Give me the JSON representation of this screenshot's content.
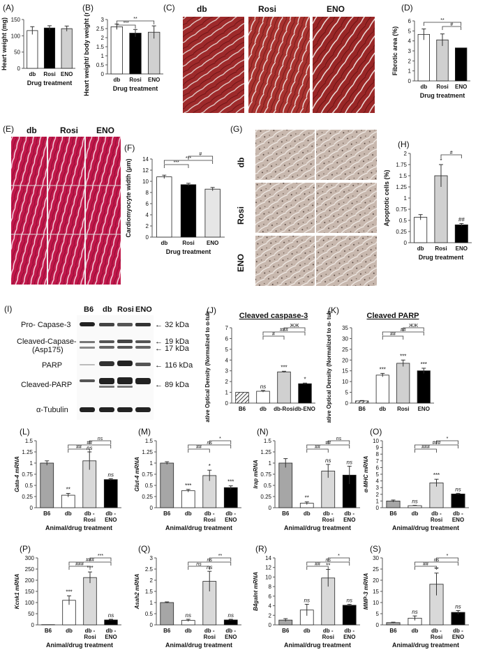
{
  "panels": {
    "A": {
      "label": "(A)",
      "ylabel": "Heart weight (mg)",
      "xlabel": "Drug treatment",
      "ticks": [
        "0",
        "50",
        "100",
        "150"
      ],
      "cats": [
        "db",
        "Rosi",
        "ENO"
      ]
    },
    "B": {
      "label": "(B)",
      "ylabel": "Heart weight/ body weight (mg/g)",
      "xlabel": "Drug treatment",
      "ticks": [
        "0",
        "0.5",
        "1",
        "1.5",
        "2",
        "2.5",
        "3"
      ],
      "cats": [
        "db",
        "Rosi",
        "ENO"
      ],
      "sig": [
        "***",
        "**"
      ]
    },
    "C": {
      "label": "(C)",
      "cols": [
        "db",
        "Rosi",
        "ENO"
      ]
    },
    "D": {
      "label": "(D)",
      "ylabel": "Fibrotic area (%)",
      "xlabel": "Drug treatment",
      "ticks": [
        "0",
        "1",
        "2",
        "3",
        "4",
        "5",
        "6"
      ],
      "cats": [
        "db",
        "Rosi",
        "ENO"
      ],
      "sig": [
        "**",
        "#"
      ]
    },
    "E": {
      "label": "(E)",
      "cols": [
        "db",
        "Rosi",
        "ENO"
      ]
    },
    "F": {
      "label": "(F)",
      "ylabel": "Cardiomyocyte width (μm)",
      "xlabel": "Drug treatment",
      "ticks": [
        "0",
        "2",
        "4",
        "6",
        "8",
        "10",
        "12",
        "14"
      ],
      "cats": [
        "db",
        "Rosi",
        "ENO"
      ],
      "sig": [
        "***",
        "***",
        "#"
      ]
    },
    "G": {
      "label": "(G)",
      "rows": [
        "db",
        "Rosi",
        "ENO"
      ]
    },
    "H": {
      "label": "(H)",
      "ylabel": "Apoptotic cells (%)",
      "xlabel": "Drug treatment",
      "ticks": [
        "0",
        "0.25",
        "0.5",
        "0.75",
        "1",
        "1.25",
        "1.5",
        "1.75",
        "2"
      ],
      "cats": [
        "db",
        "Rosi",
        "ENO"
      ],
      "sig": [
        "#",
        "*",
        "##"
      ]
    },
    "I": {
      "label": "(I)",
      "lanes": [
        "B6",
        "db",
        "Rosi",
        "ENO"
      ],
      "rows": [
        "Pro- Capase-3",
        "Cleaved-Capase-3",
        "(Asp175)",
        "PARP",
        "Cleaved-PARP",
        "α-Tubulin"
      ],
      "markers": [
        "32 kDa",
        "19 kDa",
        "17 kDa",
        "116 kDa",
        "89 kDa"
      ]
    },
    "J": {
      "label": "(J)",
      "title": "Cleaved caspase-3",
      "ylabel": "Relative Optical Density (Normalized to α-tubulin)",
      "ticks": [
        "0",
        "1",
        "2",
        "3",
        "4",
        "5",
        "6",
        "7"
      ],
      "cats": [
        "B6",
        "db",
        "db-Rosi",
        "db-ENO"
      ],
      "sig": [
        "ns",
        "***",
        "*",
        "#",
        "###",
        "ЖЖ"
      ]
    },
    "K": {
      "label": "(K)",
      "title": "Cleaved PARP",
      "ylabel": "Relative Optical Density (Normalized to α- tubulin)",
      "ticks": [
        "0",
        "5",
        "10",
        "15",
        "20",
        "25",
        "30",
        "35"
      ],
      "cats": [
        "B6",
        "db",
        "Rosi",
        "ENO"
      ],
      "sig": [
        "***",
        "***",
        "***",
        "##",
        "##",
        "ЖЖ"
      ]
    },
    "L": {
      "label": "(L)",
      "ylabel": "Gata-4 mRNA",
      "xlabel": "Animal/drug treatment",
      "ticks": [
        "0",
        "0.25",
        "0.5",
        "0.75",
        "1",
        "1.25",
        "1.5"
      ],
      "cats": [
        "B6",
        "db",
        "db - Rosi",
        "db - ENO"
      ],
      "sig": [
        "**",
        "ns",
        "ns",
        "##",
        "##",
        "ns"
      ]
    },
    "M": {
      "label": "(M)",
      "ylabel": "Glut-4 mRNA",
      "xlabel": "Animal/drug treatment",
      "ticks": [
        "0",
        "0.25",
        "0.5",
        "0.75",
        "1",
        "1.25",
        "1.5"
      ],
      "cats": [
        "B6",
        "db",
        "db - Rosi",
        "db - ENO"
      ],
      "sig": [
        "***",
        "*",
        "***",
        "##",
        "ns",
        "*"
      ]
    },
    "N": {
      "label": "(N)",
      "ylabel": "Irap mRNA",
      "xlabel": "Animal/drug treatment",
      "ticks": [
        "0",
        "0.25",
        "0.5",
        "0.75",
        "1",
        "1.25",
        "1.5"
      ],
      "cats": [
        "B6",
        "db",
        "db - Rosi",
        "db - ENO"
      ],
      "sig": [
        "**",
        "ns",
        "ns",
        "##",
        "##",
        "ns"
      ]
    },
    "O": {
      "label": "(O)",
      "ylabel": "α-MHC mRNA",
      "xlabel": "Animal/drug treatment",
      "ticks": [
        "0",
        "1",
        "2",
        "3",
        "4",
        "5",
        "6",
        "7",
        "8",
        "9",
        "10"
      ],
      "cats": [
        "B6",
        "db",
        "db - Rosi",
        "db - ENO"
      ],
      "sig": [
        "ns",
        "***",
        "ns",
        "###",
        "###",
        "*"
      ]
    },
    "P": {
      "label": "(P)",
      "ylabel": "Kcnk1 mRNA",
      "xlabel": "Animal/drug treatment",
      "ticks": [
        "0",
        "50",
        "100",
        "150",
        "200",
        "250",
        "300"
      ],
      "cats": [
        "B6",
        "db",
        "db - Rosi",
        "db - ENO"
      ],
      "sig": [
        "***",
        "***",
        "ns",
        "###",
        "###",
        "***"
      ]
    },
    "Q": {
      "label": "(Q)",
      "ylabel": "Asah2 mRNA",
      "xlabel": "Animal/drug treatment",
      "ticks": [
        "0",
        "0.5",
        "1",
        "1.5",
        "2",
        "2.5",
        "3"
      ],
      "cats": [
        "B6",
        "db",
        "db - Rosi",
        "db - ENO"
      ],
      "sig": [
        "ns",
        "ns",
        "ns",
        "ns",
        "ns",
        "**"
      ]
    },
    "R": {
      "label": "(R)",
      "ylabel": "B4galnt mRNA",
      "xlabel": "Animal/drug treatment",
      "ticks": [
        "0",
        "2",
        "4",
        "6",
        "8",
        "10",
        "12",
        "14"
      ],
      "cats": [
        "B6",
        "db",
        "db - Rosi",
        "db - ENO"
      ],
      "sig": [
        "ns",
        "**",
        "ns",
        "##",
        "ns",
        "*"
      ]
    },
    "S": {
      "label": "(S)",
      "ylabel": "MMP-3 mRNA",
      "xlabel": "Animal/drug treatment",
      "ticks": [
        "0",
        "5",
        "10",
        "15",
        "20",
        "25",
        "30"
      ],
      "cats": [
        "B6",
        "db",
        "db - Rosi",
        "db - ENO"
      ],
      "sig": [
        "ns",
        "**",
        "ns",
        "##",
        "ns",
        "*"
      ]
    }
  },
  "chart_data": [
    {
      "panel": "A",
      "type": "bar",
      "categories": [
        "db",
        "Rosi",
        "ENO"
      ],
      "values": [
        116,
        124,
        122
      ],
      "errors": [
        12,
        7,
        8
      ],
      "ylim": [
        0,
        150
      ],
      "ylabel": "Heart weight (mg)",
      "xlabel": "Drug treatment",
      "colors": [
        "#ffffff",
        "#000000",
        "#d0d0d0"
      ]
    },
    {
      "panel": "B",
      "type": "bar",
      "categories": [
        "db",
        "Rosi",
        "ENO"
      ],
      "values": [
        2.6,
        2.25,
        2.3
      ],
      "errors": [
        0.15,
        0.2,
        0.35
      ],
      "ylim": [
        0,
        3
      ],
      "ylabel": "Heart weight/ body weight (mg/g)",
      "xlabel": "Drug treatment",
      "colors": [
        "#ffffff",
        "#000000",
        "#d0d0d0"
      ]
    },
    {
      "panel": "D",
      "type": "bar",
      "categories": [
        "db",
        "Rosi",
        "ENO"
      ],
      "values": [
        4.65,
        4.1,
        3.3
      ],
      "errors": [
        0.55,
        0.6,
        0.0
      ],
      "ylim": [
        0,
        6
      ],
      "ylabel": "Fibrotic area (%)",
      "xlabel": "Drug treatment",
      "colors": [
        "#ffffff",
        "#d0d0d0",
        "#000000"
      ]
    },
    {
      "panel": "F",
      "type": "bar",
      "categories": [
        "db",
        "Rosi",
        "ENO"
      ],
      "values": [
        10.8,
        9.4,
        8.6
      ],
      "errors": [
        0.3,
        0.25,
        0.3
      ],
      "ylim": [
        0,
        14
      ],
      "ylabel": "Cardiomyocyte width (μm)",
      "xlabel": "Drug treatment",
      "colors": [
        "#ffffff",
        "#000000",
        "#e6e6e6"
      ]
    },
    {
      "panel": "H",
      "type": "bar",
      "categories": [
        "db",
        "Rosi",
        "ENO"
      ],
      "values": [
        0.57,
        1.5,
        0.4
      ],
      "errors": [
        0.06,
        0.25,
        0.03
      ],
      "ylim": [
        0,
        2
      ],
      "ylabel": "Apoptotic cells (%)",
      "xlabel": "Drug treatment",
      "colors": [
        "#ffffff",
        "#d0d0d0",
        "#000000"
      ]
    },
    {
      "panel": "J",
      "type": "bar",
      "categories": [
        "B6",
        "db",
        "db-Rosi",
        "db-ENO"
      ],
      "values": [
        1.0,
        1.1,
        2.9,
        1.8
      ],
      "errors": [
        0,
        0.08,
        0.06,
        0.06
      ],
      "ylim": [
        0,
        7
      ],
      "title": "Cleaved caspase-3",
      "ylabel": "Relative Optical Density (Normalized to α-tubulin)",
      "colors": [
        "hatch",
        "#ffffff",
        "#d0d0d0",
        "#000000"
      ]
    },
    {
      "panel": "K",
      "type": "bar",
      "categories": [
        "B6",
        "db",
        "Rosi",
        "ENO"
      ],
      "values": [
        1.0,
        13.0,
        18.5,
        15.0
      ],
      "errors": [
        0.2,
        0.8,
        1.5,
        1.2
      ],
      "ylim": [
        0,
        35
      ],
      "title": "Cleaved PARP",
      "ylabel": "Relative Optical Density (Normalized to α- tubulin)",
      "colors": [
        "hatch",
        "#ffffff",
        "#d0d0d0",
        "#000000"
      ]
    },
    {
      "panel": "L",
      "type": "bar",
      "categories": [
        "B6",
        "db",
        "db - Rosi",
        "db - ENO"
      ],
      "values": [
        1.0,
        0.28,
        1.05,
        0.63
      ],
      "errors": [
        0.05,
        0.04,
        0.2,
        0.02
      ],
      "ylim": [
        0,
        1.5
      ],
      "ylabel": "Gata-4 mRNA",
      "xlabel": "Animal/drug treatment",
      "colors": [
        "#a6a6a6",
        "#ffffff",
        "#d9d9d9",
        "#000000"
      ]
    },
    {
      "panel": "M",
      "type": "bar",
      "categories": [
        "B6",
        "db",
        "db - Rosi",
        "db - ENO"
      ],
      "values": [
        1.0,
        0.38,
        0.72,
        0.45
      ],
      "errors": [
        0.03,
        0.03,
        0.12,
        0.04
      ],
      "ylim": [
        0,
        1.5
      ],
      "ylabel": "Glut-4 mRNA",
      "xlabel": "Animal/drug treatment",
      "colors": [
        "#a6a6a6",
        "#ffffff",
        "#d9d9d9",
        "#000000"
      ]
    },
    {
      "panel": "N",
      "type": "bar",
      "categories": [
        "B6",
        "db",
        "db - Rosi",
        "db - ENO"
      ],
      "values": [
        1.0,
        0.1,
        0.82,
        0.73
      ],
      "errors": [
        0.1,
        0.03,
        0.15,
        0.2
      ],
      "ylim": [
        0,
        1.5
      ],
      "ylabel": "Irap mRNA",
      "xlabel": "Animal/drug treatment",
      "colors": [
        "#a6a6a6",
        "#ffffff",
        "#d9d9d9",
        "#000000"
      ]
    },
    {
      "panel": "O",
      "type": "bar",
      "categories": [
        "B6",
        "db",
        "db - Rosi",
        "db - ENO"
      ],
      "values": [
        1.0,
        0.3,
        3.7,
        2.05
      ],
      "errors": [
        0.15,
        0.05,
        0.55,
        0.1
      ],
      "ylim": [
        0,
        10
      ],
      "ylabel": "α-MHC mRNA",
      "xlabel": "Animal/drug treatment",
      "colors": [
        "#a6a6a6",
        "#ffffff",
        "#d9d9d9",
        "#000000"
      ]
    },
    {
      "panel": "P",
      "type": "bar",
      "categories": [
        "B6",
        "db",
        "db - Rosi",
        "db - ENO"
      ],
      "values": [
        1,
        110,
        212,
        22
      ],
      "errors": [
        0,
        20,
        25,
        3
      ],
      "ylim": [
        0,
        300
      ],
      "ylabel": "Kcnk1 mRNA",
      "xlabel": "Animal/drug treatment",
      "colors": [
        "#a6a6a6",
        "#ffffff",
        "#d9d9d9",
        "#000000"
      ]
    },
    {
      "panel": "Q",
      "type": "bar",
      "categories": [
        "B6",
        "db",
        "db - Rosi",
        "db - ENO"
      ],
      "values": [
        1.0,
        0.2,
        1.95,
        0.22
      ],
      "errors": [
        0.03,
        0.05,
        0.45,
        0.03
      ],
      "ylim": [
        0,
        3
      ],
      "ylabel": "Asah2 mRNA",
      "xlabel": "Animal/drug treatment",
      "colors": [
        "#a6a6a6",
        "#ffffff",
        "#d9d9d9",
        "#000000"
      ]
    },
    {
      "panel": "R",
      "type": "bar",
      "categories": [
        "B6",
        "db",
        "db - Rosi",
        "db - ENO"
      ],
      "values": [
        1.0,
        3.1,
        9.8,
        4.1
      ],
      "errors": [
        0.3,
        1.2,
        1.8,
        0.2
      ],
      "ylim": [
        0,
        14
      ],
      "ylabel": "B4galnt mRNA",
      "xlabel": "Animal/drug treatment",
      "colors": [
        "#a6a6a6",
        "#ffffff",
        "#d9d9d9",
        "#000000"
      ]
    },
    {
      "panel": "S",
      "type": "bar",
      "categories": [
        "B6",
        "db",
        "db - Rosi",
        "db - ENO"
      ],
      "values": [
        1.0,
        3.0,
        18.2,
        5.6
      ],
      "errors": [
        0.2,
        1.0,
        5.0,
        0.8
      ],
      "ylim": [
        0,
        30
      ],
      "ylabel": "MMP-3 mRNA",
      "xlabel": "Animal/drug treatment",
      "colors": [
        "#a6a6a6",
        "#ffffff",
        "#d9d9d9",
        "#000000"
      ]
    }
  ]
}
